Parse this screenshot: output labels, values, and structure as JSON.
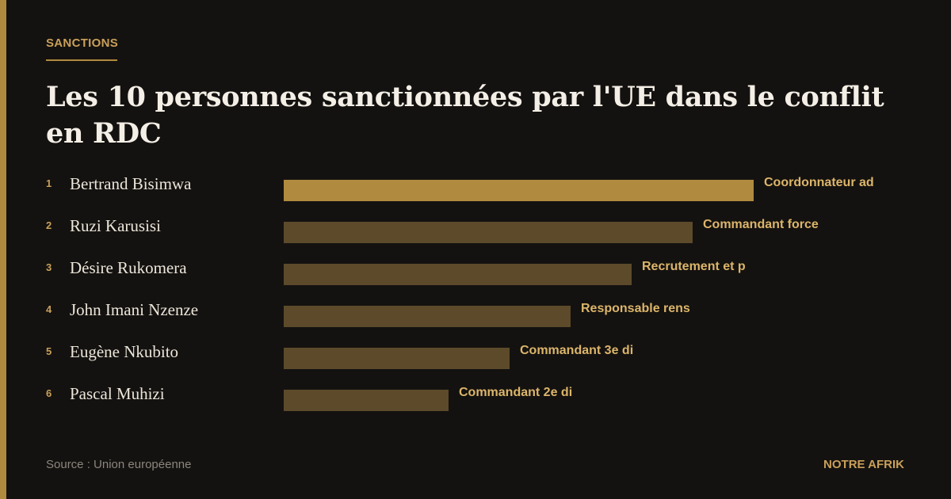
{
  "header": {
    "kicker": "SANCTIONS",
    "title": "Les 10 personnes sanctionnées par l'UE dans le conflit en RDC"
  },
  "rows": [
    {
      "rank": 1,
      "name": "Bertrand Bisimwa",
      "role": "Coordonnateur ad"
    },
    {
      "rank": 2,
      "name": "Ruzi Karusisi",
      "role": "Commandant force"
    },
    {
      "rank": 3,
      "name": "Désire Rukomera",
      "role": "Recrutement et p"
    },
    {
      "rank": 4,
      "name": "John Imani Nzenze",
      "role": "Responsable rens"
    },
    {
      "rank": 5,
      "name": "Eugène Nkubito",
      "role": "Commandant 3e di"
    },
    {
      "rank": 6,
      "name": "Pascal Muhizi",
      "role": "Commandant 2e di"
    }
  ],
  "footer": {
    "source": "Source : Union européenne",
    "brand": "NOTRE AFRIK"
  }
}
